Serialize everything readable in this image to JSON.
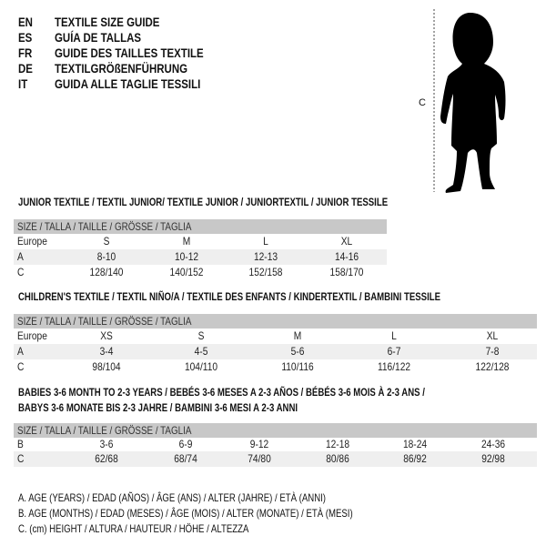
{
  "header": {
    "lines": [
      {
        "code": "EN",
        "text": "TEXTILE SIZE GUIDE"
      },
      {
        "code": "ES",
        "text": "GUÍA DE TALLAS"
      },
      {
        "code": "FR",
        "text": "GUIDE DES TAILLES TEXTILE"
      },
      {
        "code": "DE",
        "text": "TEXTILGRÖßENFÜHRUNG"
      },
      {
        "code": "IT",
        "text": "GUIDA ALLE TAGLIE TESSILI"
      }
    ]
  },
  "figure": {
    "measure_label": "C",
    "icon": "child-silhouette"
  },
  "size_header": "SIZE / TALLA / TAILLE / GRÖSSE / TAGLIA",
  "junior": {
    "title": "JUNIOR TEXTILE / TEXTIL JUNIOR/ TEXTILE JUNIOR / JUNIORTEXTIL / JUNIOR TESSILE",
    "rows": [
      {
        "label": "Europe",
        "cells": [
          "S",
          "M",
          "L",
          "XL"
        ]
      },
      {
        "label": "A",
        "cells": [
          "8-10",
          "10-12",
          "12-13",
          "14-16"
        ]
      },
      {
        "label": "C",
        "cells": [
          "128/140",
          "140/152",
          "152/158",
          "158/170"
        ]
      }
    ]
  },
  "children": {
    "title": "CHILDREN'S TEXTILE / TEXTIL NIÑO/A / TEXTILE DES ENFANTS / KINDERTEXTIL / BAMBINI TESSILE",
    "rows": [
      {
        "label": "Europe",
        "cells": [
          "XS",
          "S",
          "M",
          "L",
          "XL"
        ]
      },
      {
        "label": "A",
        "cells": [
          "3-4",
          "4-5",
          "5-6",
          "6-7",
          "7-8"
        ]
      },
      {
        "label": "C",
        "cells": [
          "98/104",
          "104/110",
          "110/116",
          "116/122",
          "122/128"
        ]
      }
    ]
  },
  "babies": {
    "title_line1": "BABIES 3-6 MONTH TO 2-3 YEARS / BEBÉS 3-6 MESES A 2-3 AÑOS / BÉBÉS 3-6 MOIS À 2-3 ANS /",
    "title_line2": "BABYS 3-6 MONATE BIS 2-3 JAHRE / BAMBINI 3-6 MESI A 2-3 ANNI",
    "rows": [
      {
        "label": "B",
        "cells": [
          "3-6",
          "6-9",
          "9-12",
          "12-18",
          "18-24",
          "24-36"
        ]
      },
      {
        "label": "C",
        "cells": [
          "62/68",
          "68/74",
          "74/80",
          "80/86",
          "86/92",
          "92/98"
        ]
      }
    ]
  },
  "legend": [
    "A. AGE (YEARS) / EDAD (AÑOS) / ÂGE (ANS) / ALTER (JAHRE) / ETÀ (ANNI)",
    "B. AGE (MONTHS) / EDAD (MESES) / ÂGE (MOIS) / ALTER (MONATE) / ETÀ (MESI)",
    "C. (cm) HEIGHT / ALTURA / HAUTEUR / HÖHE / ALTEZZA"
  ]
}
